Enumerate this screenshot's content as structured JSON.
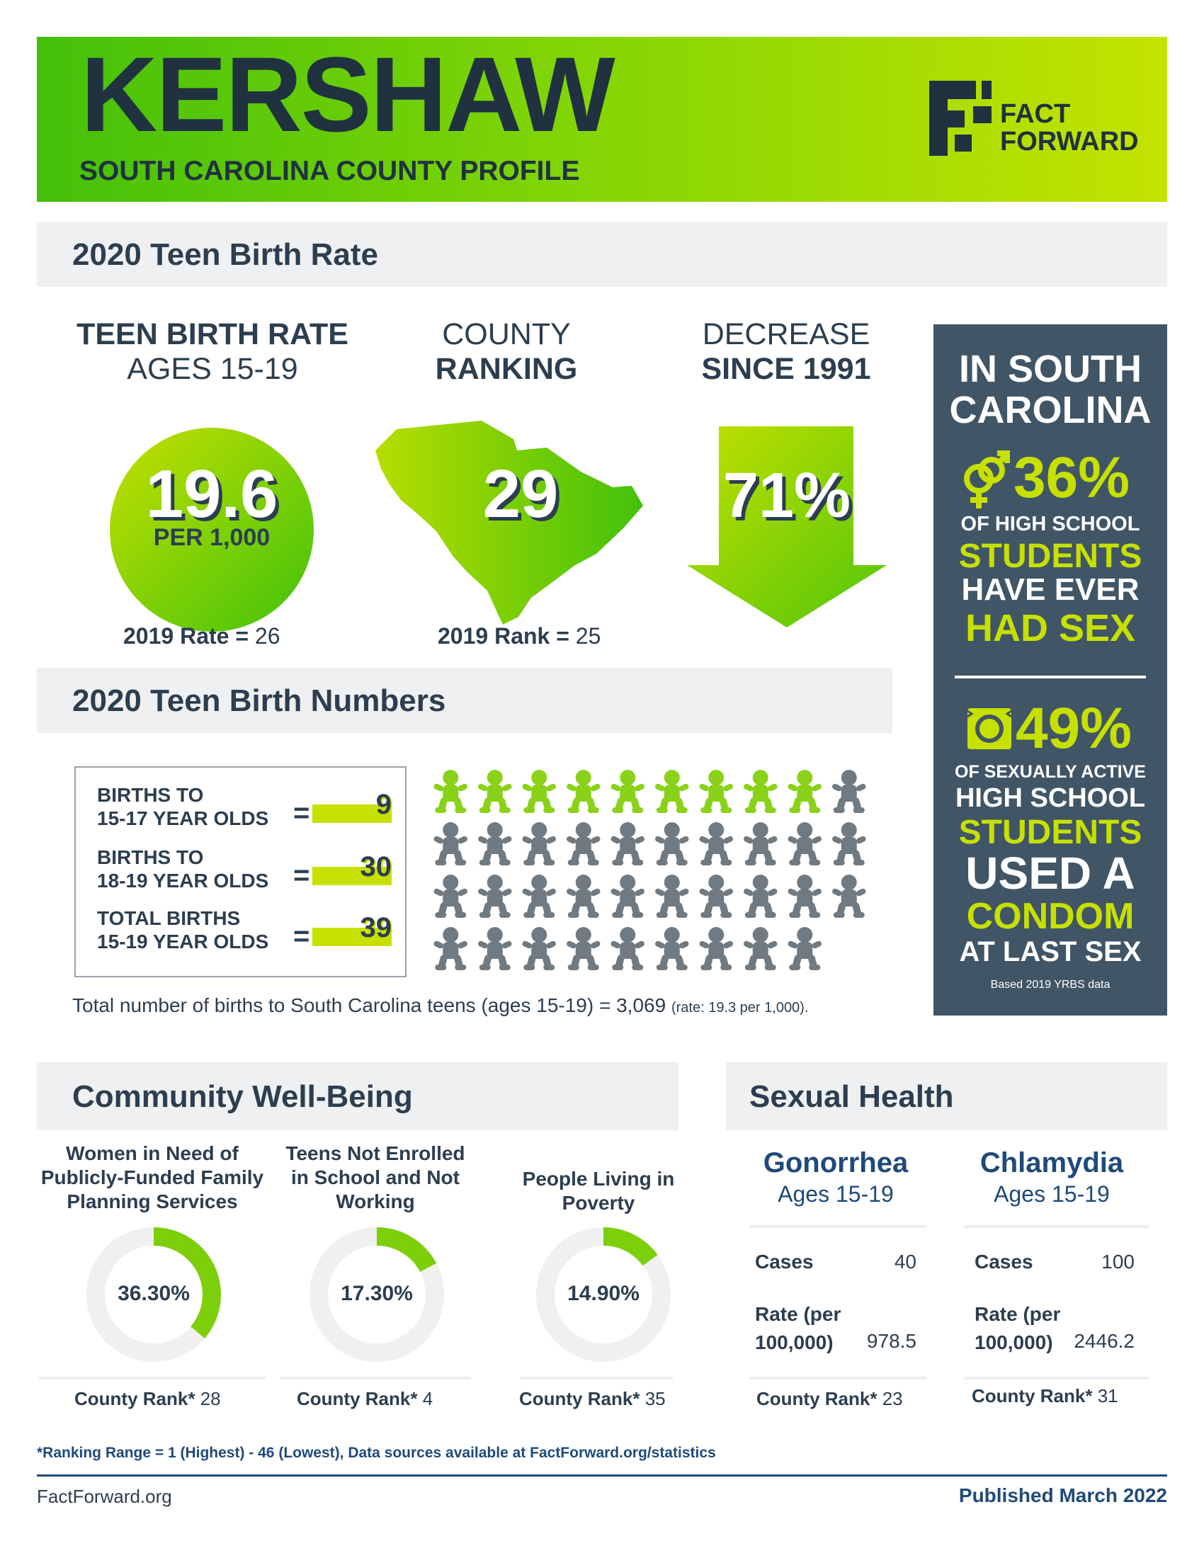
{
  "header": {
    "county": "KERSHAW",
    "subtitle": "SOUTH CAROLINA COUNTY PROFILE",
    "logo_line1": "FACT",
    "logo_line2": "FORWARD"
  },
  "teen_birth_rate": {
    "section_title": "2020 Teen Birth Rate",
    "rate_head1": "TEEN BIRTH RATE",
    "rate_head2": "AGES 15-19",
    "rate_value": "19.6",
    "rate_unit": "PER 1,000",
    "prev_rate_label": "2019 Rate =",
    "prev_rate_value": "26",
    "rank_head1": "COUNTY",
    "rank_head2": "RANKING",
    "rank_value": "29",
    "prev_rank_label": "2019 Rank =",
    "prev_rank_value": "25",
    "decrease_head1": "DECREASE",
    "decrease_head2": "SINCE 1991",
    "decrease_value": "71%"
  },
  "sc_panel": {
    "head1": "IN SOUTH",
    "head2": "CAROLINA",
    "stat1_value": "36%",
    "stat1_l1": "OF HIGH SCHOOL",
    "stat1_l2": "STUDENTS",
    "stat1_l3": "HAVE EVER",
    "stat1_l4": "HAD SEX",
    "stat2_value": "49%",
    "stat2_l1": "OF SEXUALLY ACTIVE",
    "stat2_l2": "HIGH SCHOOL",
    "stat2_l3": "STUDENTS",
    "stat2_l4": "USED A",
    "stat2_l5": "CONDOM",
    "stat2_l6": "AT LAST SEX",
    "note": "Based 2019 YRBS data",
    "icon1": "gender-symbols-icon",
    "icon2": "condom-icon"
  },
  "teen_birth_numbers": {
    "section_title": "2020 Teen Birth Numbers",
    "rows": [
      {
        "label1": "BIRTHS TO",
        "label2": "15-17 YEAR OLDS",
        "eq": "=",
        "value": "9"
      },
      {
        "label1": "BIRTHS TO",
        "label2": "18-19 YEAR OLDS",
        "eq": "=",
        "value": "30"
      },
      {
        "label1": "TOTAL BIRTHS",
        "label2": "15-19 YEAR OLDS",
        "eq": "=",
        "value": "39"
      }
    ],
    "babies_highlighted": 9,
    "babies_total": 39,
    "babies_per_row": 10,
    "highlight_color": "#8ad21a",
    "baby_color": "#6f7a82",
    "state_total_text": "Total number of births to South Carolina teens (ages 15-19) = 3,069",
    "state_rate_text": "(rate: 19.3 per 1,000)."
  },
  "community": {
    "section_title": "Community Well-Being",
    "items": [
      {
        "l1": "Women in Need of",
        "l2": "Publicly-Funded Family",
        "l3": "Planning Services",
        "value": "36.30%",
        "fraction": 0.363,
        "rank_label": "County Rank*",
        "rank": "28"
      },
      {
        "l1": "Teens Not Enrolled",
        "l2": "in School and Not",
        "l3": "Working",
        "value": "17.30%",
        "fraction": 0.173,
        "rank_label": "County Rank*",
        "rank": "4"
      },
      {
        "l1": "People Living in",
        "l2": "Poverty",
        "l3": "",
        "value": "14.90%",
        "fraction": 0.149,
        "rank_label": "County Rank*",
        "rank": "35"
      }
    ],
    "ring_color": "#7ccf0a",
    "track_color": "#f0f0f0"
  },
  "sexual_health": {
    "section_title": "Sexual Health",
    "cols": [
      {
        "title": "Gonorrhea",
        "sub": "Ages 15-19",
        "cases_label": "Cases",
        "cases": "40",
        "rate_label1": "Rate (per",
        "rate_label2": "100,000)",
        "rate": "978.5",
        "rank_label": "County Rank*",
        "rank": "23"
      },
      {
        "title": "Chlamydia",
        "sub": "Ages 15-19",
        "cases_label": "Cases",
        "cases": "100",
        "rate_label1": "Rate (per",
        "rate_label2": "100,000)",
        "rate": "2446.2",
        "rank_label": "County Rank*",
        "rank": "31"
      }
    ]
  },
  "footer": {
    "footnote": "*Ranking Range = 1 (Highest) - 46 (Lowest), Data sources available at FactForward.org/statistics",
    "site": "FactForward.org",
    "published": "Published March 2022"
  }
}
